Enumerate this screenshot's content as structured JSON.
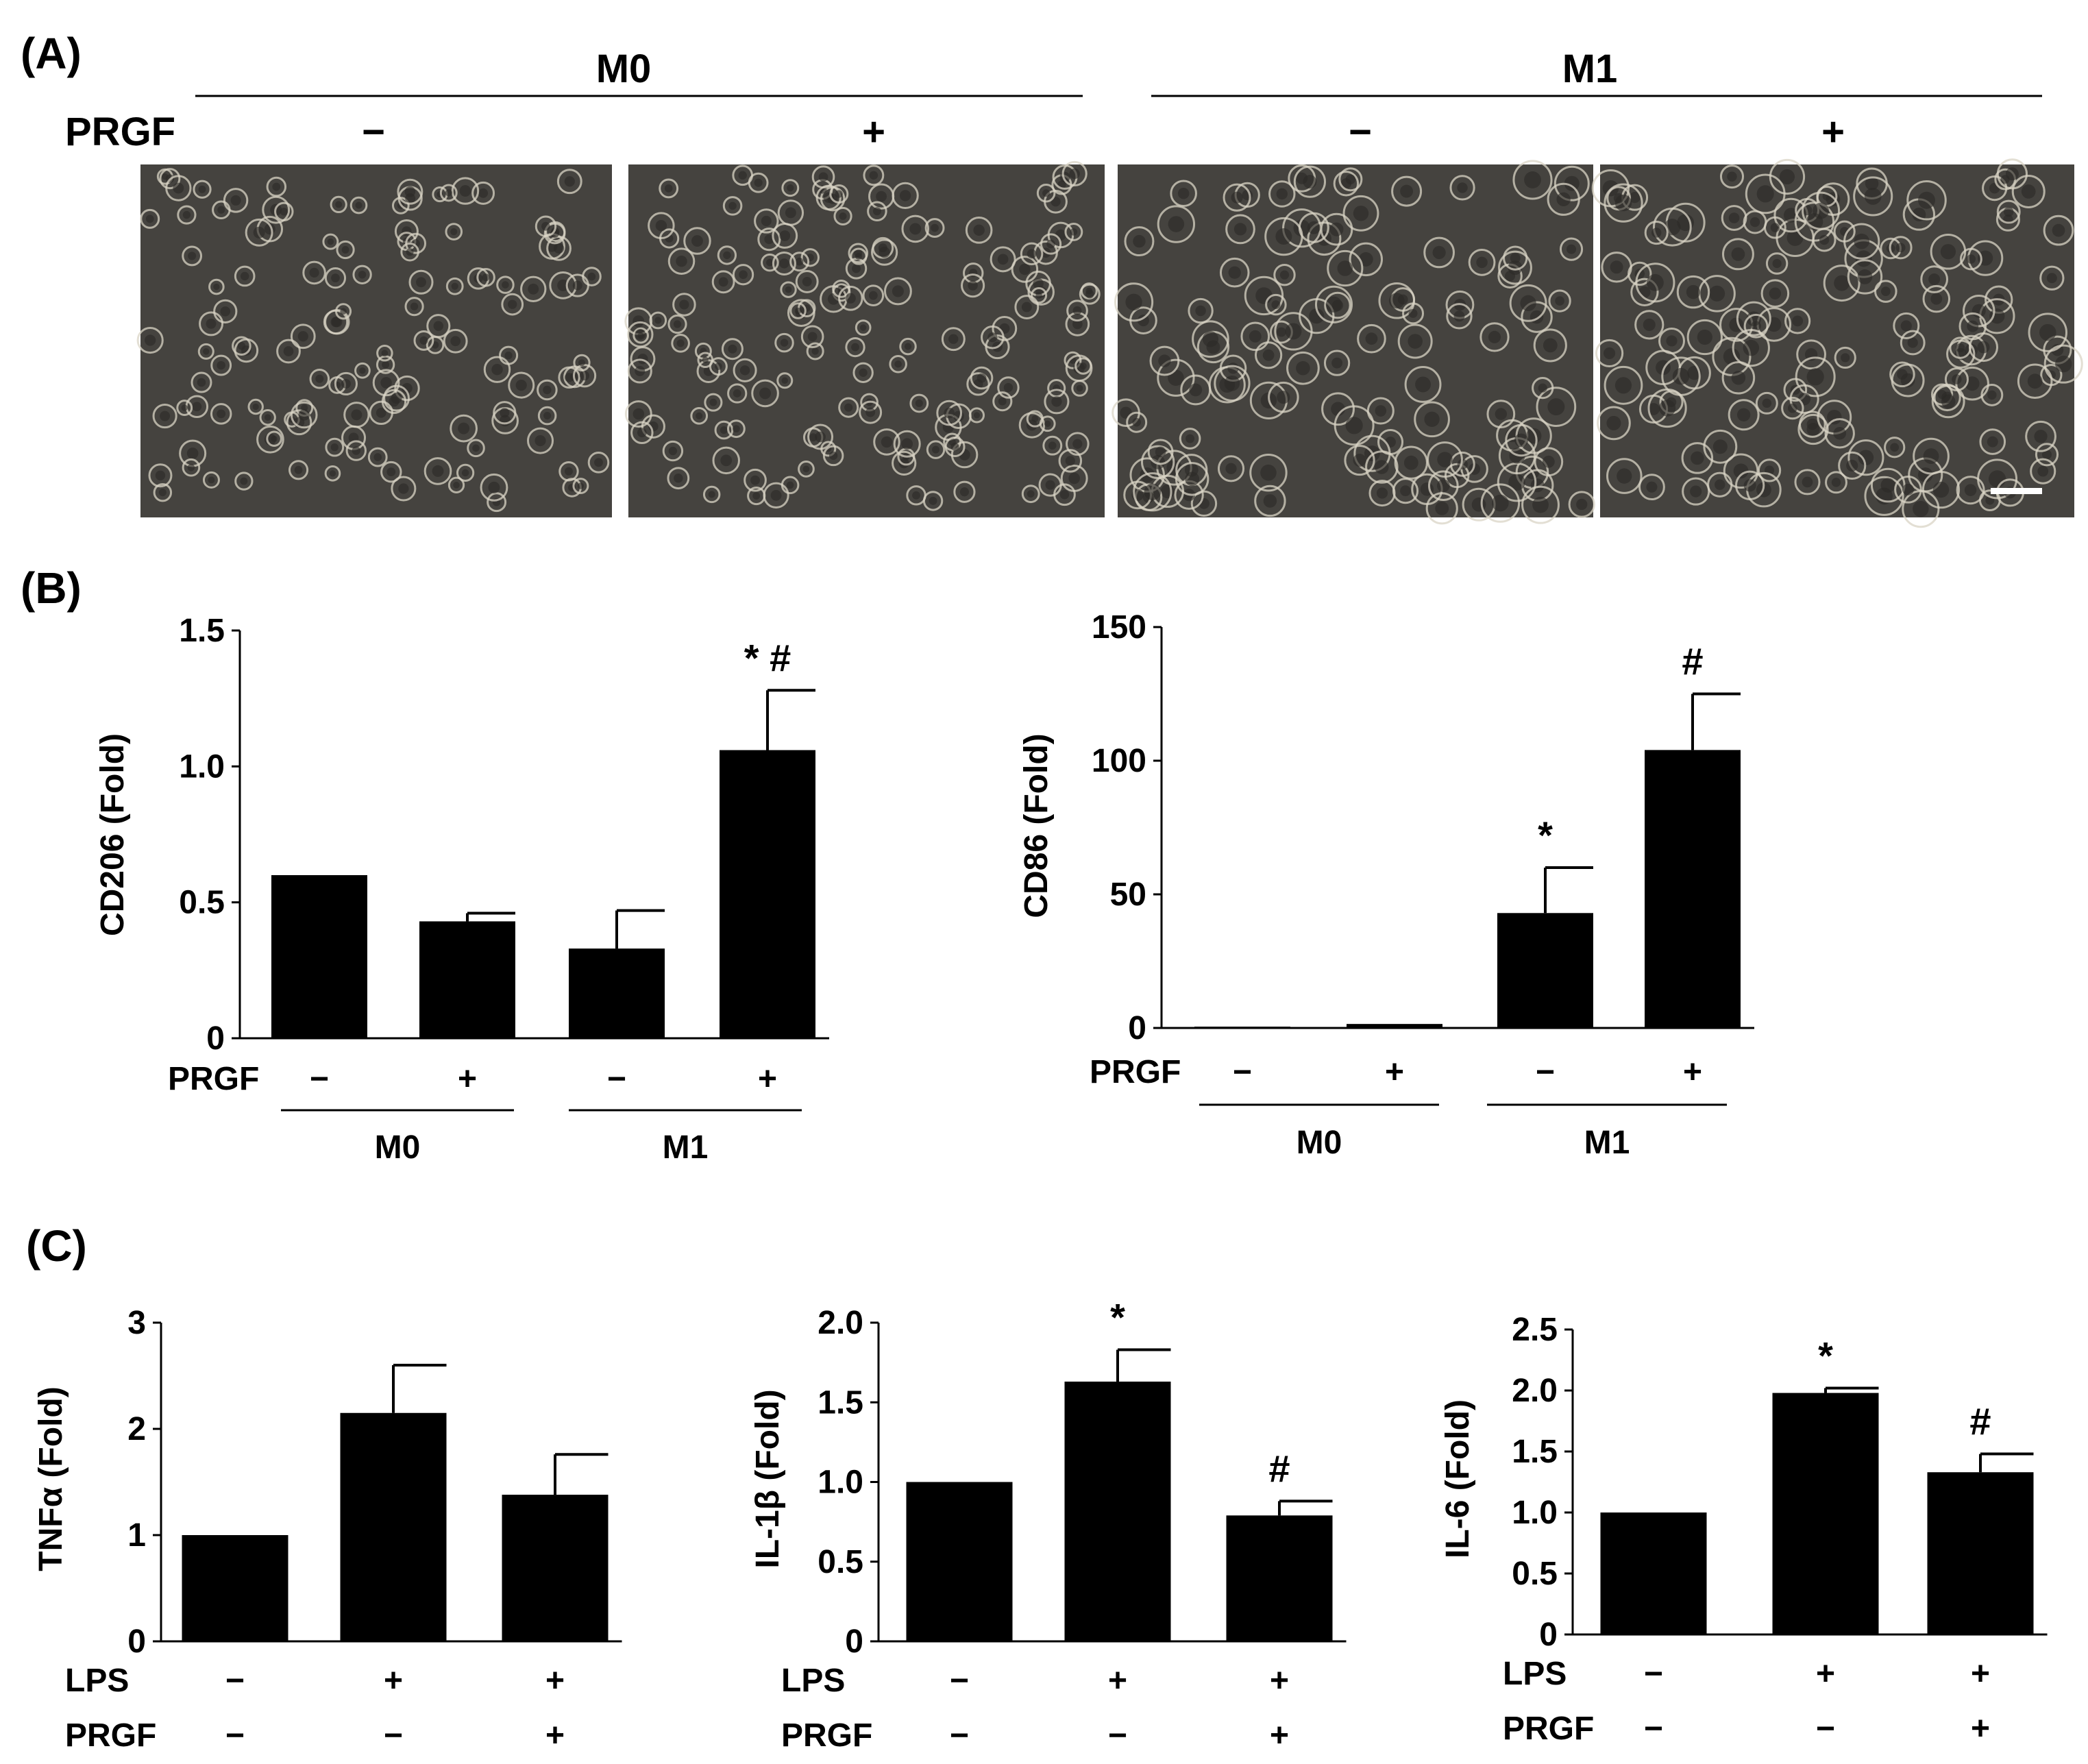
{
  "panel_labels": {
    "a": "(A)",
    "b": "(B)",
    "c": "(C)"
  },
  "colors": {
    "bar": "#000000",
    "axis": "#000000",
    "micro_bg": "#45433f",
    "cell": "#d9d4c6",
    "scalebar": "#ffffff"
  },
  "panel_a": {
    "group_m0": "M0",
    "group_m1": "M1",
    "row_label": "PRGF",
    "treatments": [
      "−",
      "+",
      "−",
      "+"
    ],
    "images": [
      "micrograph-m0-control",
      "micrograph-m0-prgf",
      "micrograph-m1-control",
      "micrograph-m1-prgf"
    ]
  },
  "chart_data": [
    {
      "type": "bar",
      "id": "cd206",
      "ylabel": "CD206 (Fold)",
      "ylim": [
        0,
        1.5
      ],
      "yticks": [
        "0",
        "0.5",
        "1.0",
        "1.5"
      ],
      "ytick_values": [
        0,
        0.5,
        1.0,
        1.5
      ],
      "values": [
        0.6,
        0.43,
        0.33,
        1.06
      ],
      "errors": [
        0,
        0.03,
        0.14,
        0.22
      ],
      "annotations": [
        "",
        "",
        "",
        "* #"
      ],
      "rows": [
        {
          "label": "PRGF",
          "values": [
            "−",
            "+",
            "−",
            "+"
          ]
        }
      ],
      "groups": [
        {
          "label": "M0",
          "span": [
            0,
            1
          ]
        },
        {
          "label": "M1",
          "span": [
            2,
            3
          ]
        }
      ]
    },
    {
      "type": "bar",
      "id": "cd86",
      "ylabel": "CD86 (Fold)",
      "ylim": [
        0,
        150
      ],
      "yticks": [
        "0",
        "50",
        "100",
        "150"
      ],
      "ytick_values": [
        0,
        50,
        100,
        150
      ],
      "values": [
        0.5,
        1.5,
        43,
        104
      ],
      "errors": [
        0,
        0,
        17,
        21
      ],
      "annotations": [
        "",
        "",
        "*",
        "#"
      ],
      "rows": [
        {
          "label": "PRGF",
          "values": [
            "−",
            "+",
            "−",
            "+"
          ]
        }
      ],
      "groups": [
        {
          "label": "M0",
          "span": [
            0,
            1
          ]
        },
        {
          "label": "M1",
          "span": [
            2,
            3
          ]
        }
      ]
    },
    {
      "type": "bar",
      "id": "tnfa",
      "ylabel": "TNFα (Fold)",
      "ylim": [
        0,
        3
      ],
      "yticks": [
        "0",
        "1",
        "2",
        "3"
      ],
      "ytick_values": [
        0,
        1,
        2,
        3
      ],
      "values": [
        1.0,
        2.15,
        1.38
      ],
      "errors": [
        0,
        0.45,
        0.38
      ],
      "annotations": [
        "",
        "",
        ""
      ],
      "rows": [
        {
          "label": "LPS",
          "values": [
            "−",
            "+",
            "+"
          ]
        },
        {
          "label": "PRGF",
          "values": [
            "−",
            "−",
            "+"
          ]
        }
      ]
    },
    {
      "type": "bar",
      "id": "il1b",
      "ylabel": "IL-1β (Fold)",
      "ylim": [
        0,
        2.0
      ],
      "yticks": [
        "0",
        "0.5",
        "1.0",
        "1.5",
        "2.0"
      ],
      "ytick_values": [
        0,
        0.5,
        1.0,
        1.5,
        2.0
      ],
      "values": [
        1.0,
        1.63,
        0.79
      ],
      "errors": [
        0,
        0.2,
        0.09
      ],
      "annotations": [
        "",
        "*",
        "#"
      ],
      "rows": [
        {
          "label": "LPS",
          "values": [
            "−",
            "+",
            "+"
          ]
        },
        {
          "label": "PRGF",
          "values": [
            "−",
            "−",
            "+"
          ]
        }
      ]
    },
    {
      "type": "bar",
      "id": "il6",
      "ylabel": "IL-6 (Fold)",
      "ylim": [
        0,
        2.5
      ],
      "yticks": [
        "0",
        "0.5",
        "1.0",
        "1.5",
        "2.0",
        "2.5"
      ],
      "ytick_values": [
        0,
        0.5,
        1.0,
        1.5,
        2.0,
        2.5
      ],
      "values": [
        1.0,
        1.98,
        1.33
      ],
      "errors": [
        0,
        0.04,
        0.15
      ],
      "annotations": [
        "",
        "*",
        "#"
      ],
      "rows": [
        {
          "label": "LPS",
          "values": [
            "−",
            "+",
            "+"
          ]
        },
        {
          "label": "PRGF",
          "values": [
            "−",
            "−",
            "+"
          ]
        }
      ]
    }
  ]
}
